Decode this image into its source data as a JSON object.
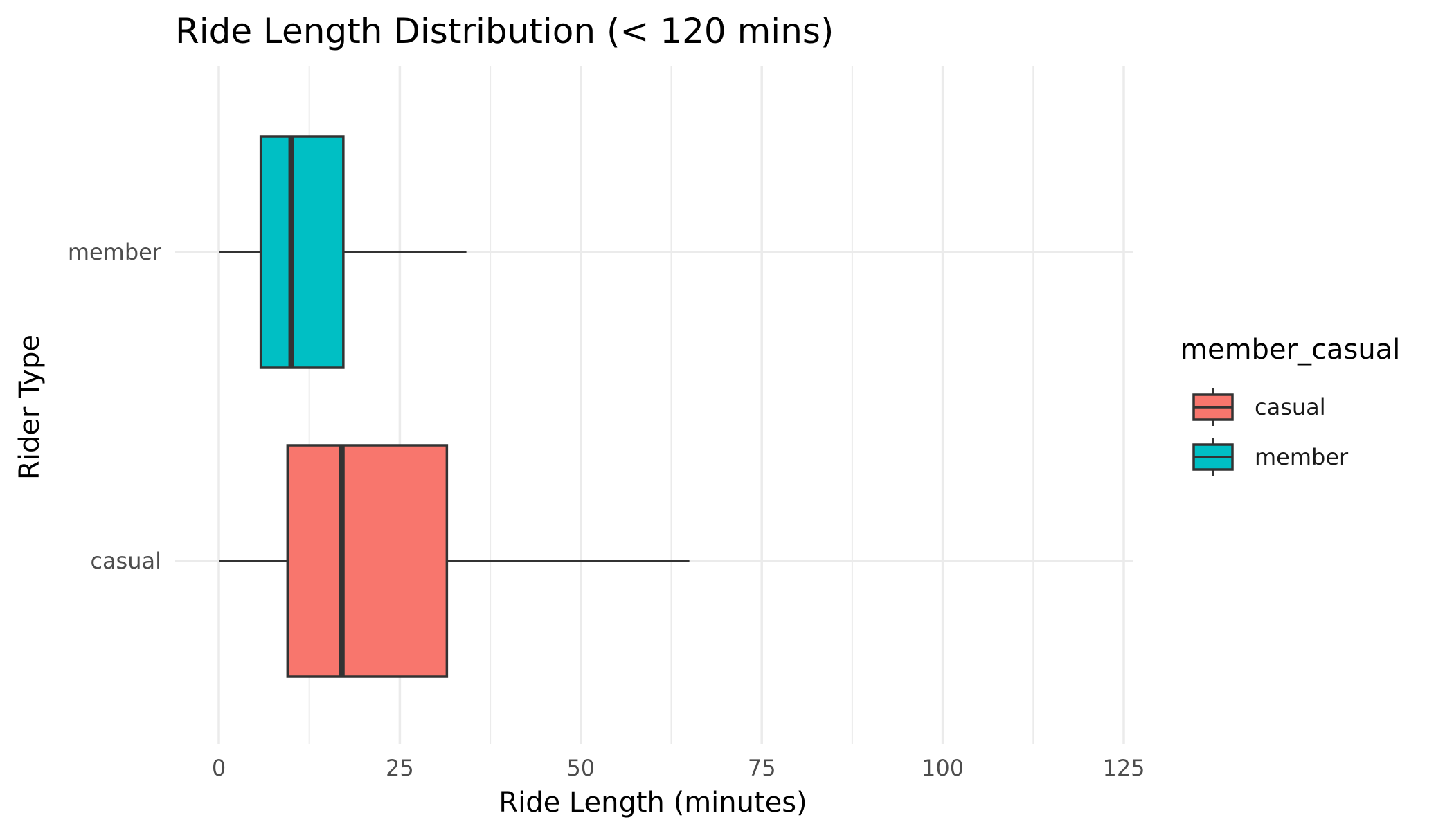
{
  "chart_data": {
    "type": "boxplot",
    "orientation": "horizontal",
    "title": "Ride Length Distribution (< 120 mins)",
    "xlabel": "Ride Length (minutes)",
    "ylabel": "Rider Type",
    "xlim": [
      0,
      125
    ],
    "x_ticks": [
      0,
      25,
      50,
      75,
      100,
      125
    ],
    "x_tick_labels": [
      "0",
      "25",
      "50",
      "75",
      "100",
      "125"
    ],
    "grid": true,
    "legend": {
      "title": "member_casual",
      "position": "right",
      "entries": [
        {
          "label": "casual",
          "color": "#F8766D"
        },
        {
          "label": "member",
          "color": "#00BFC4"
        }
      ]
    },
    "categories": [
      "casual",
      "member"
    ],
    "series": [
      {
        "name": "casual",
        "color": "#F8766D",
        "min": 0,
        "q1": 9.5,
        "median": 17,
        "q3": 31.5,
        "max": 65
      },
      {
        "name": "member",
        "color": "#00BFC4",
        "min": 0,
        "q1": 5.8,
        "median": 10,
        "q3": 17.2,
        "max": 34.2
      }
    ],
    "outline_color": "#333333",
    "grid_color": "#EBEBEB"
  }
}
